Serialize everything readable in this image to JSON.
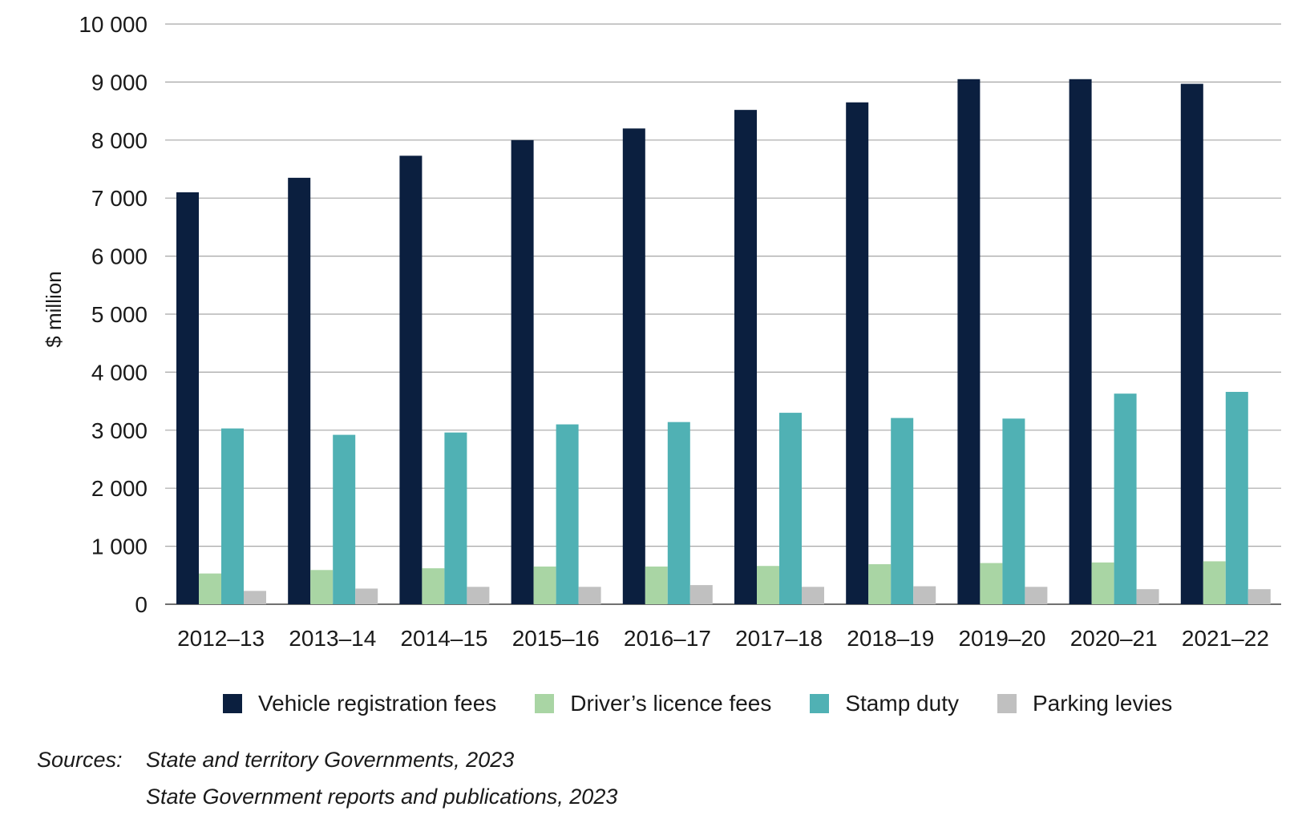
{
  "chart_data": {
    "type": "bar",
    "title": "",
    "xlabel": "",
    "ylabel": "$ million",
    "ylim": [
      0,
      10000
    ],
    "yticks": [
      0,
      1000,
      2000,
      3000,
      4000,
      5000,
      6000,
      7000,
      8000,
      9000,
      10000
    ],
    "ytick_labels": [
      "0",
      "1 000",
      "2 000",
      "3 000",
      "4 000",
      "5 000",
      "6 000",
      "7 000",
      "8 000",
      "9 000",
      "10 000"
    ],
    "grid": true,
    "legend_position": "bottom",
    "categories": [
      "2012–13",
      "2013–14",
      "2014–15",
      "2015–16",
      "2016–17",
      "2017–18",
      "2018–19",
      "2019–20",
      "2020–21",
      "2021–22"
    ],
    "series": [
      {
        "name": "Vehicle registration fees",
        "color": "#0b1f3f",
        "values": [
          7100,
          7350,
          7730,
          8000,
          8200,
          8520,
          8650,
          9050,
          9050,
          8970
        ]
      },
      {
        "name": "Driver’s licence fees",
        "color": "#a9d5a4",
        "values": [
          530,
          590,
          620,
          650,
          650,
          660,
          690,
          710,
          720,
          740
        ]
      },
      {
        "name": "Stamp duty",
        "color": "#50b1b4",
        "values": [
          3030,
          2920,
          2960,
          3100,
          3140,
          3300,
          3210,
          3200,
          3630,
          3660
        ]
      },
      {
        "name": "Parking levies",
        "color": "#c0c0c0",
        "values": [
          230,
          270,
          300,
          300,
          330,
          300,
          310,
          300,
          260,
          260
        ]
      }
    ]
  },
  "sources": {
    "label": "Sources:",
    "lines": [
      "State and territory Governments, 2023",
      "State Government reports and publications, 2023"
    ]
  }
}
